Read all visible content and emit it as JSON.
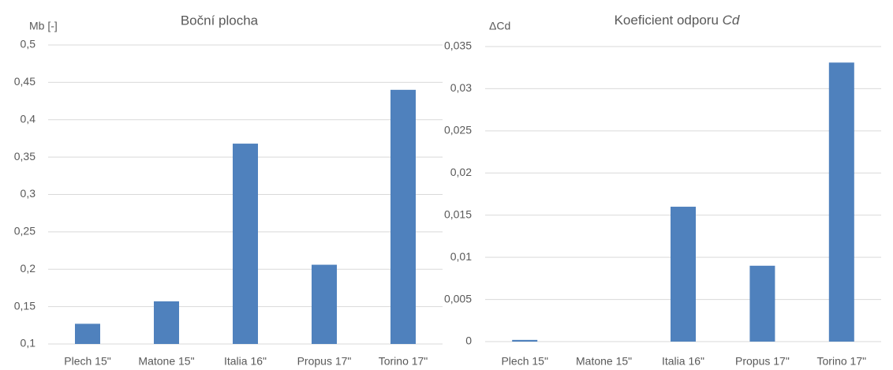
{
  "chart_data": [
    {
      "type": "bar",
      "title": "Boční plocha",
      "y_label": "Mb [-]",
      "categories": [
        "Plech 15\"",
        "Matone 15\"",
        "Italia 16\"",
        "Propus 17\"",
        "Torino 17\""
      ],
      "values": [
        0.127,
        0.157,
        0.368,
        0.206,
        0.44
      ],
      "color": "#4f81bd",
      "ylim": [
        0.1,
        0.5
      ],
      "yticks": [
        {
          "value": 0.1,
          "label": "0,1"
        },
        {
          "value": 0.15,
          "label": "0,15"
        },
        {
          "value": 0.2,
          "label": "0,2"
        },
        {
          "value": 0.25,
          "label": "0,25"
        },
        {
          "value": 0.3,
          "label": "0,3"
        },
        {
          "value": 0.35,
          "label": "0,35"
        },
        {
          "value": 0.4,
          "label": "0,4"
        },
        {
          "value": 0.45,
          "label": "0,45"
        },
        {
          "value": 0.5,
          "label": "0,5"
        }
      ],
      "grid": true
    },
    {
      "type": "bar",
      "title": "Koeficient odporu",
      "title_emphasis": "Cd",
      "y_label": "ΔCd",
      "categories": [
        "Plech 15\"",
        "Matone 15\"",
        "Italia 16\"",
        "Propus 17\"",
        "Torino 17\""
      ],
      "values": [
        0.0002,
        0,
        0.016,
        0.009,
        0.0331
      ],
      "color": "#4f81bd",
      "ylim": [
        0,
        0.035
      ],
      "yticks": [
        0,
        {
          "value": 0.005,
          "label": "0,005"
        },
        {
          "value": 0.01,
          "label": "0,01"
        },
        {
          "value": 0.015,
          "label": "0,015"
        },
        {
          "value": 0.02,
          "label": "0,02"
        },
        {
          "value": 0.025,
          "label": "0,025"
        },
        {
          "value": 0.03,
          "label": "0,03"
        },
        {
          "value": 0.035,
          "label": "0,035"
        }
      ],
      "grid": true
    }
  ]
}
